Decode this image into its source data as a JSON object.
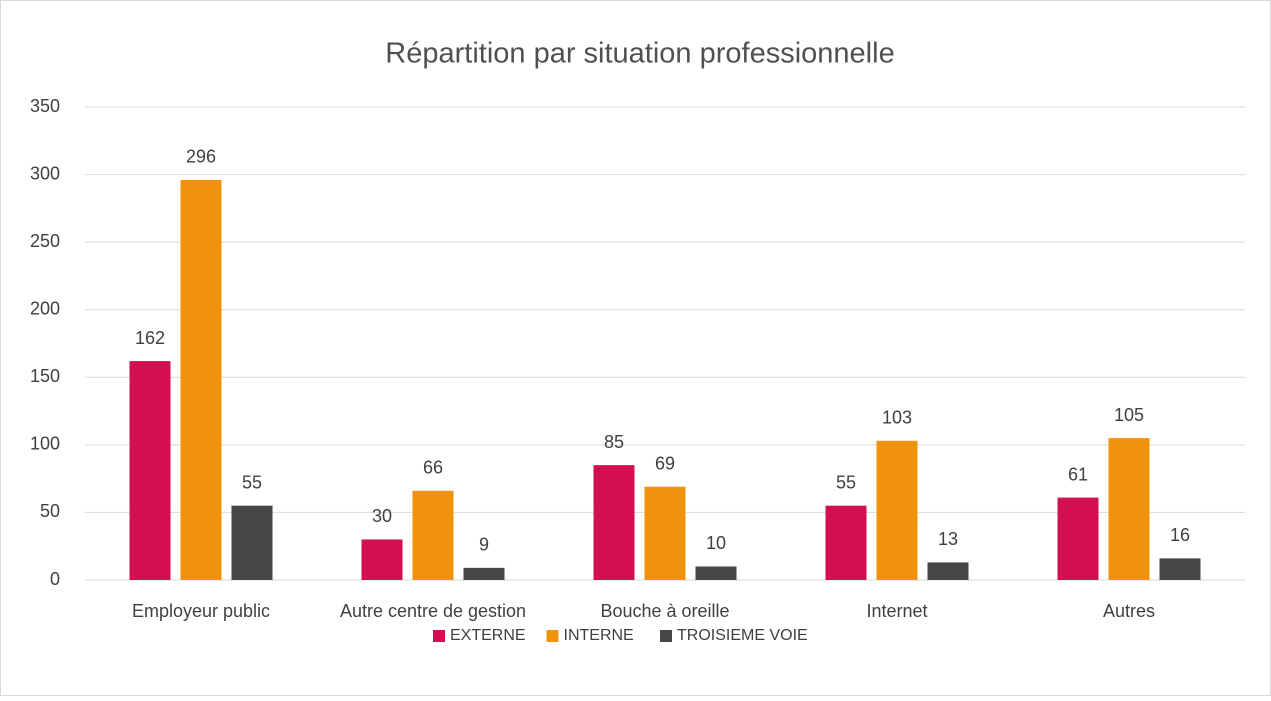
{
  "chart_data": {
    "type": "bar",
    "title": "Répartition par situation professionnelle",
    "categories": [
      "Employeur public",
      "Autre centre de gestion",
      "Bouche à oreille",
      "Internet",
      "Autres"
    ],
    "series": [
      {
        "name": "EXTERNE",
        "color": "#d20f50",
        "values": [
          162,
          30,
          85,
          55,
          61
        ]
      },
      {
        "name": "INTERNE",
        "color": "#f0920c",
        "values": [
          296,
          66,
          69,
          103,
          105
        ]
      },
      {
        "name": "TROISIEME VOIE",
        "color": "#464646",
        "values": [
          55,
          9,
          10,
          13,
          16
        ]
      }
    ],
    "ylim": [
      0,
      350
    ],
    "yticks": [
      0,
      50,
      100,
      150,
      200,
      250,
      300,
      350
    ],
    "grid": true,
    "legend": "bottom"
  }
}
